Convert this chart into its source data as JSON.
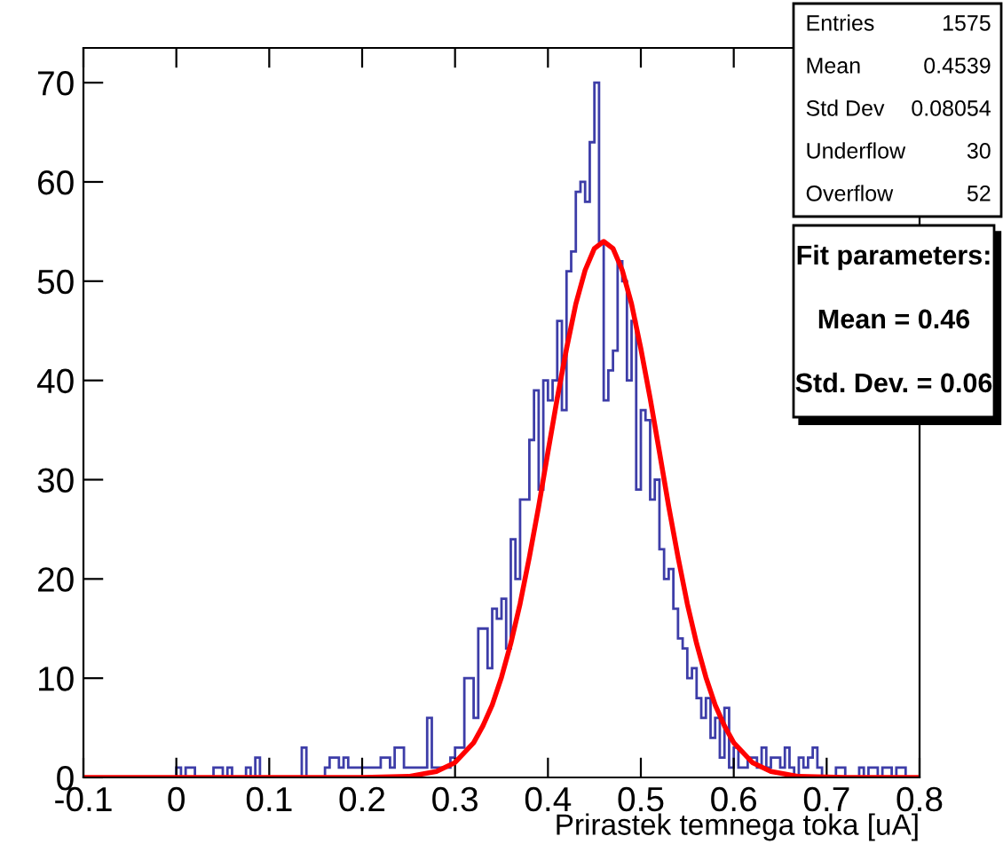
{
  "chart_data": {
    "type": "histogram",
    "xlabel": "Prirastek temnega toka [uA]",
    "xlim": [
      -0.1,
      0.8
    ],
    "xticks": [
      -0.1,
      0,
      0.1,
      0.2,
      0.3,
      0.4,
      0.5,
      0.6,
      0.7,
      0.8
    ],
    "ylim": [
      0,
      73.5
    ],
    "yticks": [
      0,
      10,
      20,
      30,
      40,
      50,
      60,
      70
    ],
    "grid": false,
    "series": [
      {
        "color": "#3d3da8",
        "bins": [
          -0.1,
          -0.095,
          -0.09,
          -0.085,
          -0.08,
          -0.075,
          -0.07,
          -0.065,
          -0.06,
          -0.055,
          -0.05,
          -0.045,
          -0.04,
          -0.035,
          -0.03,
          -0.025,
          -0.02,
          -0.015,
          -0.01,
          -0.005,
          0.0,
          0.005,
          0.01,
          0.015,
          0.02,
          0.025,
          0.03,
          0.035,
          0.04,
          0.045,
          0.05,
          0.055,
          0.06,
          0.065,
          0.07,
          0.075,
          0.08,
          0.085,
          0.09,
          0.095,
          0.1,
          0.105,
          0.11,
          0.115,
          0.12,
          0.125,
          0.13,
          0.135,
          0.14,
          0.145,
          0.15,
          0.155,
          0.16,
          0.165,
          0.17,
          0.175,
          0.18,
          0.185,
          0.19,
          0.195,
          0.2,
          0.205,
          0.21,
          0.215,
          0.22,
          0.225,
          0.23,
          0.235,
          0.24,
          0.245,
          0.25,
          0.255,
          0.26,
          0.265,
          0.27,
          0.275,
          0.28,
          0.285,
          0.29,
          0.295,
          0.3,
          0.305,
          0.31,
          0.315,
          0.32,
          0.325,
          0.33,
          0.335,
          0.34,
          0.345,
          0.35,
          0.355,
          0.36,
          0.365,
          0.37,
          0.375,
          0.38,
          0.385,
          0.39,
          0.395,
          0.4,
          0.405,
          0.41,
          0.415,
          0.42,
          0.425,
          0.43,
          0.435,
          0.44,
          0.445,
          0.45,
          0.455,
          0.46,
          0.465,
          0.47,
          0.475,
          0.48,
          0.485,
          0.49,
          0.495,
          0.5,
          0.505,
          0.51,
          0.515,
          0.52,
          0.525,
          0.53,
          0.535,
          0.54,
          0.545,
          0.55,
          0.555,
          0.56,
          0.565,
          0.57,
          0.575,
          0.58,
          0.585,
          0.59,
          0.595,
          0.6,
          0.605,
          0.61,
          0.615,
          0.62,
          0.625,
          0.63,
          0.635,
          0.64,
          0.645,
          0.65,
          0.655,
          0.66,
          0.665,
          0.67,
          0.675,
          0.68,
          0.685,
          0.69,
          0.695,
          0.7,
          0.705,
          0.71,
          0.715,
          0.72,
          0.725,
          0.73,
          0.735,
          0.74,
          0.745,
          0.75,
          0.755,
          0.76,
          0.765,
          0.77,
          0.775,
          0.78,
          0.785,
          0.79,
          0.795,
          0.8
        ],
        "values": [
          0,
          0,
          0,
          0,
          0,
          0,
          0,
          0,
          0,
          0,
          0,
          0,
          0,
          0,
          0,
          0,
          0,
          0,
          0,
          0,
          1,
          0,
          1,
          1,
          0,
          0,
          0,
          0,
          1,
          1,
          0,
          1,
          0,
          0,
          0,
          1,
          0,
          2,
          0,
          0,
          0,
          0,
          0,
          0,
          0,
          0,
          0,
          3,
          0,
          0,
          0,
          0,
          1,
          2,
          2,
          1,
          2,
          1,
          1,
          1,
          1,
          1,
          1,
          1,
          2,
          2,
          1,
          3,
          3,
          1,
          1,
          1,
          1,
          1,
          6,
          1,
          1,
          1,
          1,
          2,
          3,
          3,
          10,
          10,
          6,
          15,
          15,
          11,
          17,
          16,
          18,
          13,
          24,
          20,
          28,
          28,
          34,
          39,
          29,
          40,
          38,
          40,
          46,
          37,
          51,
          53,
          59,
          60,
          58,
          64,
          70,
          54,
          38,
          41,
          43,
          52,
          50,
          40,
          46,
          29,
          37,
          36,
          28,
          30,
          23,
          20,
          21,
          17,
          14,
          13,
          10,
          11,
          8,
          6,
          8,
          4,
          6,
          2,
          7,
          1,
          3,
          1,
          1,
          2,
          2,
          1,
          3,
          1,
          2,
          2,
          1,
          3,
          1,
          0,
          2,
          1,
          2,
          3,
          1,
          0,
          0,
          0,
          1,
          1,
          0,
          0,
          0,
          1,
          0,
          1,
          1,
          0,
          1,
          1,
          0,
          1,
          1,
          0,
          0,
          0
        ]
      },
      {
        "type": "line",
        "color": "#ff0000",
        "x": [
          -0.1,
          0.1,
          0.2,
          0.25,
          0.28,
          0.3,
          0.32,
          0.33,
          0.34,
          0.35,
          0.36,
          0.37,
          0.38,
          0.39,
          0.4,
          0.41,
          0.42,
          0.43,
          0.44,
          0.45,
          0.46,
          0.47,
          0.48,
          0.49,
          0.5,
          0.51,
          0.52,
          0.53,
          0.54,
          0.55,
          0.56,
          0.57,
          0.58,
          0.59,
          0.6,
          0.62,
          0.64,
          0.67,
          0.72,
          0.8
        ],
        "values": [
          0,
          0,
          0,
          0.1,
          0.6,
          1.5,
          3.5,
          5.2,
          7.3,
          10.1,
          13.5,
          17.5,
          22.2,
          27.3,
          32.8,
          38.2,
          43.2,
          47.7,
          51.1,
          53.3,
          54,
          53.3,
          51.1,
          47.7,
          43.2,
          38.2,
          32.8,
          27.3,
          22.2,
          17.5,
          13.5,
          10.1,
          7.3,
          5.2,
          3.5,
          1.5,
          0.6,
          0.1,
          0,
          0
        ]
      }
    ],
    "annotations": [
      "Entries 1575",
      "Mean 0.4539",
      "Std Dev 0.08054",
      "Underflow 30",
      "Overflow 52",
      "Fit parameters:",
      "Mean = 0.46",
      "Std. Dev. = 0.06"
    ]
  }
}
